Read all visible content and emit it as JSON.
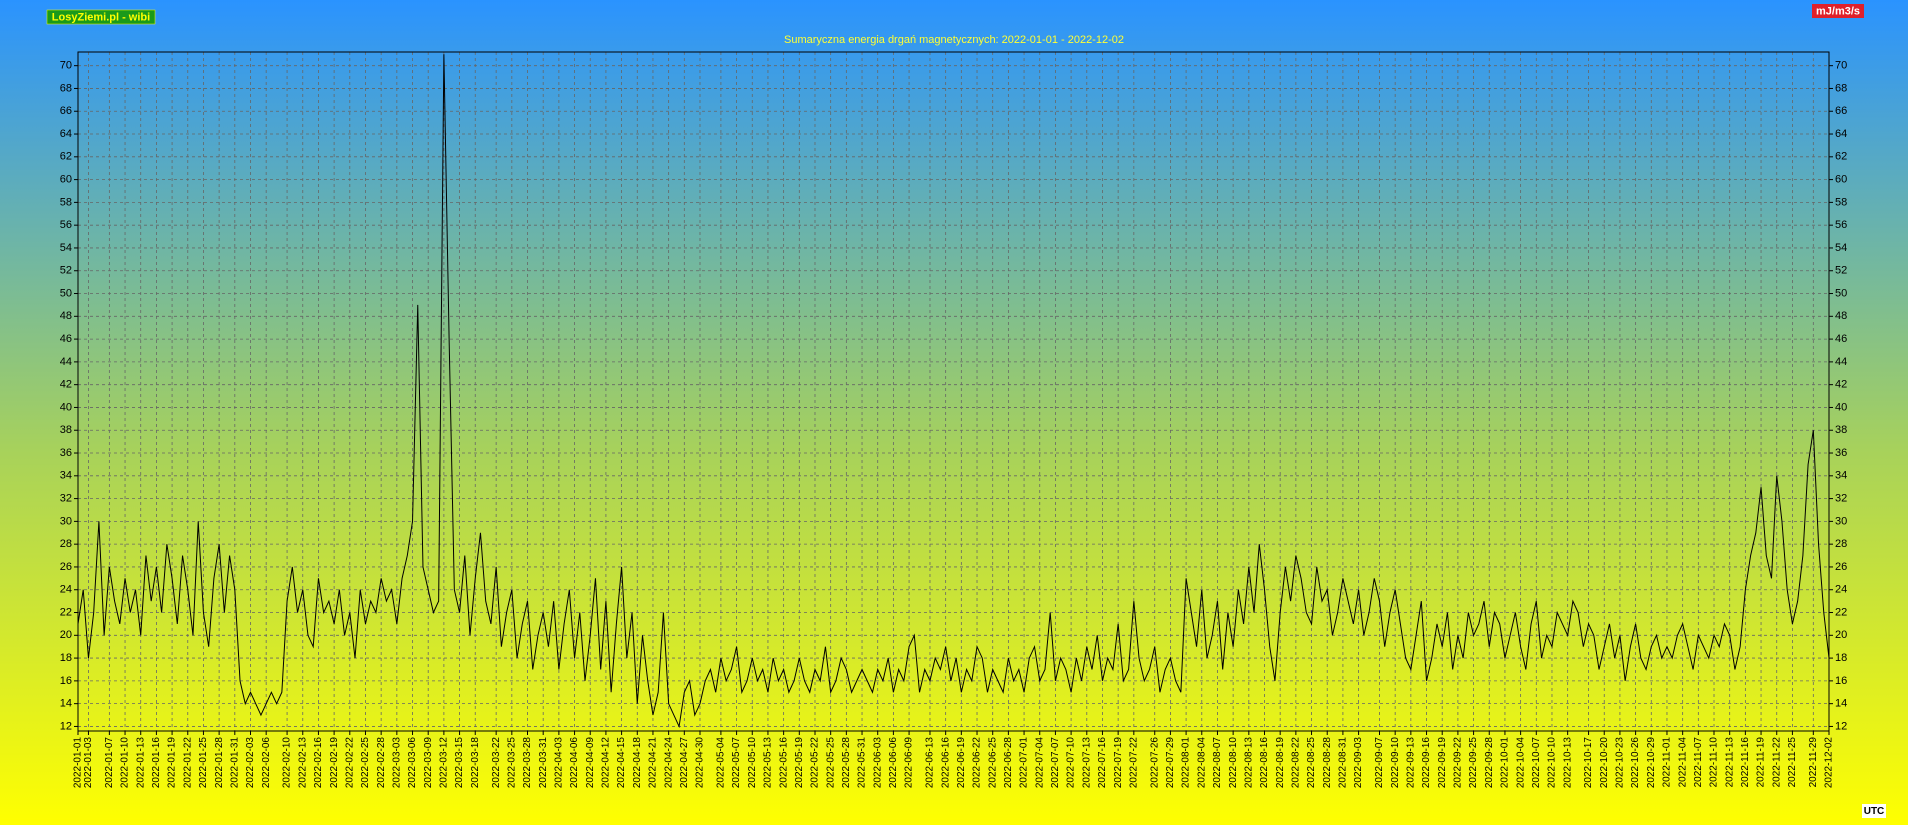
{
  "chart_data": {
    "type": "line",
    "title": "Sumaryczna energia drgań magnetycznych: 2022-01-01 - 2022-12-02",
    "site_label": "LosyZiemi.pl - wibi",
    "unit_label": "mJ/m3/s",
    "timezone_label": "UTC",
    "color": "#000000",
    "grid": true,
    "ylim": [
      11.6,
      71.2
    ],
    "yticks": [
      12,
      14,
      16,
      18,
      20,
      22,
      24,
      26,
      28,
      30,
      32,
      34,
      36,
      38,
      40,
      42,
      44,
      46,
      48,
      50,
      52,
      54,
      56,
      58,
      60,
      62,
      64,
      66,
      68,
      70
    ],
    "categories": [
      "2022-01-01",
      null,
      "2022-01-03",
      null,
      null,
      null,
      "2022-01-07",
      null,
      null,
      "2022-01-10",
      null,
      null,
      "2022-01-13",
      null,
      null,
      "2022-01-16",
      null,
      null,
      "2022-01-19",
      null,
      null,
      "2022-01-22",
      null,
      null,
      "2022-01-25",
      null,
      null,
      "2022-01-28",
      null,
      null,
      "2022-01-31",
      null,
      null,
      "2022-02-03",
      null,
      null,
      "2022-02-06",
      null,
      null,
      null,
      "2022-02-10",
      null,
      null,
      "2022-02-13",
      null,
      null,
      "2022-02-16",
      null,
      null,
      "2022-02-19",
      null,
      null,
      "2022-02-22",
      null,
      null,
      "2022-02-25",
      null,
      null,
      "2022-02-28",
      null,
      null,
      "2022-03-03",
      null,
      null,
      "2022-03-06",
      null,
      null,
      "2022-03-09",
      null,
      null,
      "2022-03-12",
      null,
      null,
      "2022-03-15",
      null,
      null,
      "2022-03-18",
      null,
      null,
      null,
      "2022-03-22",
      null,
      null,
      "2022-03-25",
      null,
      null,
      "2022-03-28",
      null,
      null,
      "2022-03-31",
      null,
      null,
      "2022-04-03",
      null,
      null,
      "2022-04-06",
      null,
      null,
      "2022-04-09",
      null,
      null,
      "2022-04-12",
      null,
      null,
      "2022-04-15",
      null,
      null,
      "2022-04-18",
      null,
      null,
      "2022-04-21",
      null,
      null,
      "2022-04-24",
      null,
      null,
      "2022-04-27",
      null,
      null,
      "2022-04-30",
      null,
      null,
      null,
      "2022-05-04",
      null,
      null,
      "2022-05-07",
      null,
      null,
      "2022-05-10",
      null,
      null,
      "2022-05-13",
      null,
      null,
      "2022-05-16",
      null,
      null,
      "2022-05-19",
      null,
      null,
      "2022-05-22",
      null,
      null,
      "2022-05-25",
      null,
      null,
      "2022-05-28",
      null,
      null,
      "2022-05-31",
      null,
      null,
      "2022-06-03",
      null,
      null,
      "2022-06-06",
      null,
      null,
      "2022-06-09",
      null,
      null,
      null,
      "2022-06-13",
      null,
      null,
      "2022-06-16",
      null,
      null,
      "2022-06-19",
      null,
      null,
      "2022-06-22",
      null,
      null,
      "2022-06-25",
      null,
      null,
      "2022-06-28",
      null,
      null,
      "2022-07-01",
      null,
      null,
      "2022-07-04",
      null,
      null,
      "2022-07-07",
      null,
      null,
      "2022-07-10",
      null,
      null,
      "2022-07-13",
      null,
      null,
      "2022-07-16",
      null,
      null,
      "2022-07-19",
      null,
      null,
      "2022-07-22",
      null,
      null,
      null,
      "2022-07-26",
      null,
      null,
      "2022-07-29",
      null,
      null,
      "2022-08-01",
      null,
      null,
      "2022-08-04",
      null,
      null,
      "2022-08-07",
      null,
      null,
      "2022-08-10",
      null,
      null,
      "2022-08-13",
      null,
      null,
      "2022-08-16",
      null,
      null,
      "2022-08-19",
      null,
      null,
      "2022-08-22",
      null,
      null,
      "2022-08-25",
      null,
      null,
      "2022-08-28",
      null,
      null,
      "2022-08-31",
      null,
      null,
      "2022-09-03",
      null,
      null,
      null,
      "2022-09-07",
      null,
      null,
      "2022-09-10",
      null,
      null,
      "2022-09-13",
      null,
      null,
      "2022-09-16",
      null,
      null,
      "2022-09-19",
      null,
      null,
      "2022-09-22",
      null,
      null,
      "2022-09-25",
      null,
      null,
      "2022-09-28",
      null,
      null,
      "2022-10-01",
      null,
      null,
      "2022-10-04",
      null,
      null,
      "2022-10-07",
      null,
      null,
      "2022-10-10",
      null,
      null,
      "2022-10-13",
      null,
      null,
      null,
      "2022-10-17",
      null,
      null,
      "2022-10-20",
      null,
      null,
      "2022-10-23",
      null,
      null,
      "2022-10-26",
      null,
      null,
      "2022-10-29",
      null,
      null,
      "2022-11-01",
      null,
      null,
      "2022-11-04",
      null,
      null,
      "2022-11-07",
      null,
      null,
      "2022-11-10",
      null,
      null,
      "2022-11-13",
      null,
      null,
      "2022-11-16",
      null,
      null,
      "2022-11-19",
      null,
      null,
      "2022-11-22",
      null,
      null,
      "2022-11-25",
      null,
      null,
      null,
      "2022-11-29",
      null,
      null,
      "2022-12-02"
    ],
    "values": [
      21,
      24,
      18,
      22,
      30,
      20,
      26,
      23,
      21,
      25,
      22,
      24,
      20,
      27,
      23,
      26,
      22,
      28,
      25,
      21,
      27,
      24,
      20,
      30,
      22,
      19,
      25,
      28,
      22,
      27,
      24,
      16,
      14,
      15,
      14,
      13,
      14,
      15,
      14,
      15,
      23,
      26,
      22,
      24,
      20,
      19,
      25,
      22,
      23,
      21,
      24,
      20,
      22,
      18,
      24,
      21,
      23,
      22,
      25,
      23,
      24,
      21,
      25,
      27,
      30,
      49,
      26,
      24,
      22,
      23,
      71,
      46,
      24,
      22,
      27,
      20,
      25,
      29,
      23,
      21,
      26,
      19,
      22,
      24,
      18,
      21,
      23,
      17,
      20,
      22,
      19,
      23,
      17,
      21,
      24,
      18,
      22,
      16,
      20,
      25,
      17,
      23,
      15,
      21,
      26,
      18,
      22,
      14,
      20,
      16,
      13,
      15,
      22,
      14,
      13,
      12,
      15,
      16,
      13,
      14,
      16,
      17,
      15,
      18,
      16,
      17,
      19,
      15,
      16,
      18,
      16,
      17,
      15,
      18,
      16,
      17,
      15,
      16,
      18,
      16,
      15,
      17,
      16,
      19,
      15,
      16,
      18,
      17,
      15,
      16,
      17,
      16,
      15,
      17,
      16,
      18,
      15,
      17,
      16,
      19,
      20,
      15,
      17,
      16,
      18,
      17,
      19,
      16,
      18,
      15,
      17,
      16,
      19,
      18,
      15,
      17,
      16,
      15,
      18,
      16,
      17,
      15,
      18,
      19,
      16,
      17,
      22,
      16,
      18,
      17,
      15,
      18,
      16,
      19,
      17,
      20,
      16,
      18,
      17,
      21,
      16,
      17,
      23,
      18,
      16,
      17,
      19,
      15,
      17,
      18,
      16,
      15,
      25,
      22,
      19,
      24,
      18,
      20,
      23,
      17,
      22,
      19,
      24,
      21,
      26,
      22,
      28,
      24,
      19,
      16,
      22,
      26,
      23,
      27,
      25,
      22,
      21,
      26,
      23,
      24,
      20,
      22,
      25,
      23,
      21,
      24,
      20,
      22,
      25,
      23,
      19,
      22,
      24,
      21,
      18,
      17,
      20,
      23,
      16,
      18,
      21,
      19,
      22,
      17,
      20,
      18,
      22,
      20,
      21,
      23,
      19,
      22,
      21,
      18,
      20,
      22,
      19,
      17,
      21,
      23,
      18,
      20,
      19,
      22,
      21,
      20,
      23,
      22,
      19,
      21,
      20,
      17,
      19,
      21,
      18,
      20,
      16,
      19,
      21,
      18,
      17,
      19,
      20,
      18,
      19,
      18,
      20,
      21,
      19,
      17,
      20,
      19,
      18,
      20,
      19,
      21,
      20,
      17,
      19,
      24,
      27,
      29,
      33,
      27,
      25,
      34,
      30,
      24,
      21,
      23,
      27,
      35,
      38,
      28,
      22,
      18
    ]
  }
}
